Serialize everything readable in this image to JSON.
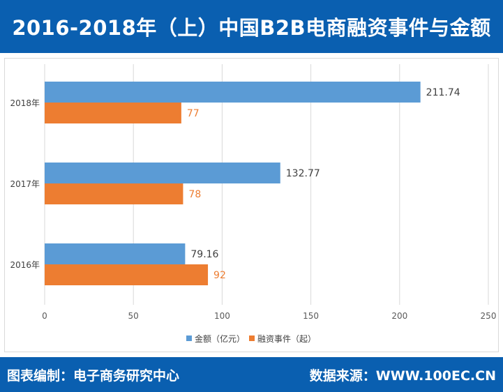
{
  "header": {
    "title": "2016-2018年（上）中国B2B电商融资事件与金额"
  },
  "footer": {
    "left": "图表编制：电子商务研究中心",
    "right": "数据来源：WWW.100EC.CN"
  },
  "colors": {
    "blue": "#5b9bd5",
    "orange": "#ed7d31",
    "header_bg": "#0a5fb0"
  },
  "chart_data": {
    "type": "bar",
    "orientation": "horizontal",
    "categories": [
      "2018年",
      "2017年",
      "2016年"
    ],
    "series": [
      {
        "name": "金额（亿元）",
        "values": [
          211.74,
          132.77,
          79.16
        ],
        "color": "#5b9bd5",
        "labels": [
          "211.74",
          "132.77",
          "79.16"
        ]
      },
      {
        "name": "融资事件（起）",
        "values": [
          77,
          78,
          92
        ],
        "color": "#ed7d31",
        "labels": [
          "77",
          "78",
          "92"
        ]
      }
    ],
    "xlim": [
      0,
      250
    ],
    "xticks": [
      "0",
      "50",
      "100",
      "150",
      "200",
      "250"
    ],
    "grid": true,
    "legend": "bottom"
  }
}
